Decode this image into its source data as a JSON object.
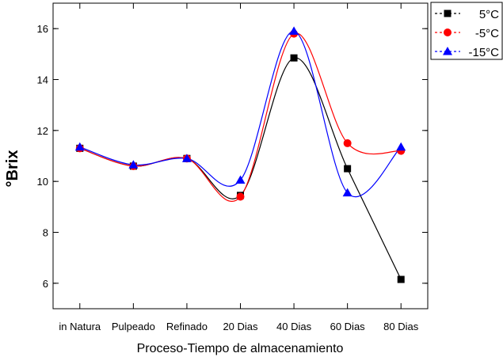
{
  "chart_data": {
    "type": "scatter",
    "xlabel": "Proceso-Tiempo de almacenamiento",
    "ylabel": "°Brix",
    "categories": [
      "in Natura",
      "Pulpeado",
      "Refinado",
      "20 Dias",
      "40 Dias",
      "60 Dias",
      "80 Dias"
    ],
    "ylim": [
      5,
      17
    ],
    "yticks": [
      6,
      8,
      10,
      12,
      14,
      16
    ],
    "grid": false,
    "legend_position": "top-right",
    "series": [
      {
        "name": "5°C",
        "marker": "square",
        "color": "#000000",
        "values": [
          11.3,
          10.6,
          10.9,
          9.45,
          14.85,
          10.5,
          6.15
        ]
      },
      {
        "name": "-5°C",
        "marker": "circle",
        "color": "#ff0000",
        "values": [
          11.3,
          10.6,
          10.9,
          9.4,
          15.8,
          11.5,
          11.2
        ]
      },
      {
        "name": "-15°C",
        "marker": "triangle",
        "color": "#0000ff",
        "values": [
          11.35,
          10.65,
          10.9,
          10.05,
          15.9,
          9.55,
          11.35
        ]
      }
    ]
  }
}
